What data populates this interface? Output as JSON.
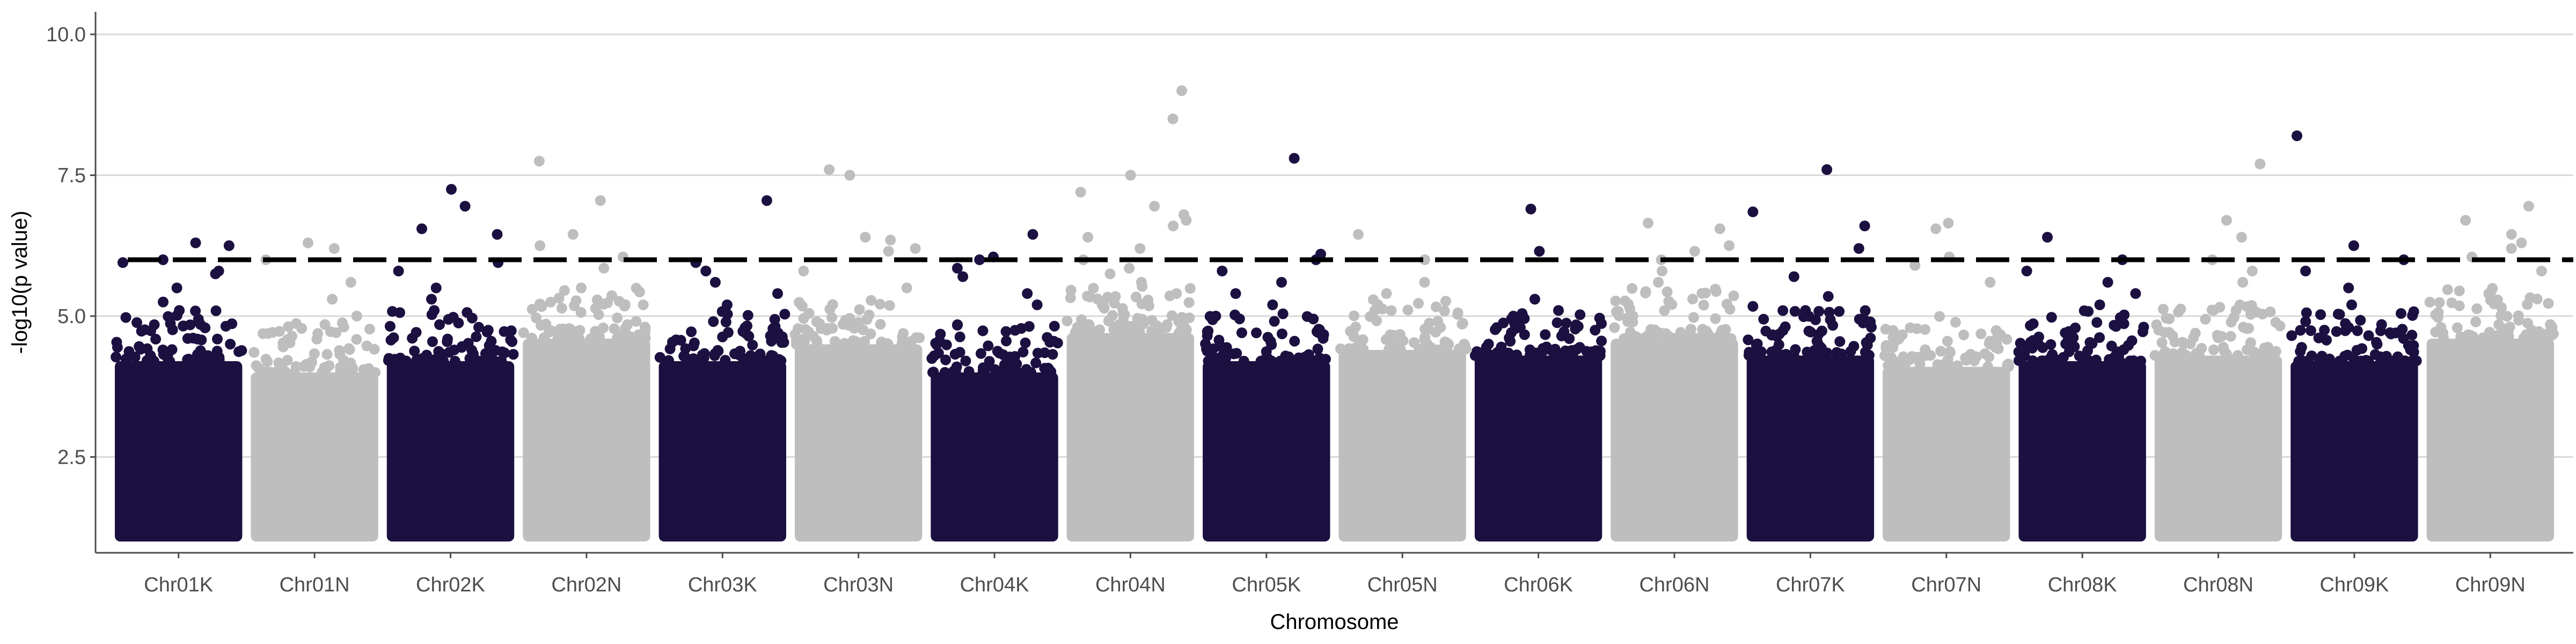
{
  "chart_data": {
    "type": "scatter",
    "subtype": "manhattan",
    "title": "",
    "xlabel": "Chromosome",
    "ylabel": "-log10(p value)",
    "categories": [
      "Chr01K",
      "Chr01N",
      "Chr02K",
      "Chr02N",
      "Chr03K",
      "Chr03N",
      "Chr04K",
      "Chr04N",
      "Chr05K",
      "Chr05N",
      "Chr06K",
      "Chr06N",
      "Chr07K",
      "Chr07N",
      "Chr08K",
      "Chr08N",
      "Chr09K",
      "Chr09N"
    ],
    "ylim": [
      0.8,
      10.4
    ],
    "yticks": [
      2.5,
      5.0,
      7.5,
      10.0
    ],
    "ytick_labels": [
      "2.5",
      "5.0",
      "7.5",
      "10.0"
    ],
    "grid": "horizontal major",
    "legend": "none",
    "threshold": 6.0,
    "colors": {
      "odd": "#1b1040",
      "even": "#bebebe",
      "threshold": "#000000",
      "grid": "#d9d9d9",
      "axis": "#4d4d4d"
    },
    "dense_band": {
      "min": 1.0,
      "max_by_chromosome": [
        4.2,
        4.0,
        4.2,
        4.6,
        4.2,
        4.5,
        4.0,
        4.7,
        4.2,
        4.4,
        4.3,
        4.6,
        4.3,
        4.1,
        4.2,
        4.3,
        4.2,
        4.6
      ]
    },
    "peaks": [
      {
        "chr": "Chr01K",
        "values": [
          6.25,
          6.3,
          5.95,
          5.75,
          5.5,
          5.25,
          5.1,
          6.0,
          5.8
        ]
      },
      {
        "chr": "Chr01N",
        "values": [
          6.3,
          6.2,
          6.0,
          5.6,
          5.0,
          5.3
        ]
      },
      {
        "chr": "Chr02K",
        "values": [
          6.95,
          7.25,
          6.55,
          6.45,
          5.95,
          5.8,
          5.5,
          5.3,
          5.1
        ]
      },
      {
        "chr": "Chr02N",
        "values": [
          7.75,
          7.05,
          6.45,
          6.25,
          6.05,
          5.85,
          5.5,
          5.2
        ]
      },
      {
        "chr": "Chr03K",
        "values": [
          7.05,
          5.95,
          5.8,
          5.6,
          5.4,
          5.2
        ]
      },
      {
        "chr": "Chr03N",
        "values": [
          7.6,
          7.5,
          6.4,
          6.35,
          6.2,
          6.15,
          5.8,
          5.5
        ]
      },
      {
        "chr": "Chr04K",
        "values": [
          6.45,
          6.05,
          6.0,
          5.85,
          5.7,
          5.4,
          5.2
        ]
      },
      {
        "chr": "Chr04N",
        "values": [
          9.0,
          8.5,
          7.5,
          7.2,
          6.95,
          6.8,
          6.7,
          6.6,
          6.4,
          6.2,
          6.0,
          5.85,
          5.75,
          5.6,
          5.4,
          5.2
        ]
      },
      {
        "chr": "Chr05K",
        "values": [
          7.8,
          6.1,
          6.0,
          5.8,
          5.6,
          5.4,
          5.2,
          5.0
        ]
      },
      {
        "chr": "Chr05N",
        "values": [
          6.45,
          6.0,
          5.6,
          5.4,
          5.1
        ]
      },
      {
        "chr": "Chr06K",
        "values": [
          6.9,
          6.15,
          5.3,
          5.1,
          5.0
        ]
      },
      {
        "chr": "Chr06N",
        "values": [
          6.65,
          6.55,
          6.25,
          6.15,
          6.0,
          5.8,
          5.6
        ]
      },
      {
        "chr": "Chr07K",
        "values": [
          7.6,
          6.85,
          6.6,
          6.2,
          5.7,
          5.35,
          5.1
        ]
      },
      {
        "chr": "Chr07N",
        "values": [
          6.65,
          6.55,
          6.05,
          5.9,
          5.6
        ]
      },
      {
        "chr": "Chr08K",
        "values": [
          6.4,
          6.0,
          5.8,
          5.6,
          5.4,
          5.2
        ]
      },
      {
        "chr": "Chr08N",
        "values": [
          7.7,
          6.7,
          6.4,
          6.0,
          5.8,
          5.6
        ]
      },
      {
        "chr": "Chr09K",
        "values": [
          8.2,
          6.25,
          6.0,
          5.8,
          5.5,
          5.2
        ]
      },
      {
        "chr": "Chr09N",
        "values": [
          6.95,
          6.7,
          6.45,
          6.3,
          6.2,
          6.05,
          5.8
        ]
      }
    ]
  }
}
